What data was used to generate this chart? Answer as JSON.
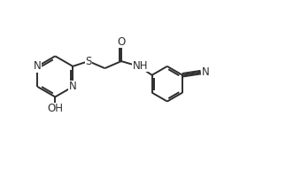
{
  "bg_color": "#ffffff",
  "line_color": "#2d2d2d",
  "line_width": 1.4,
  "font_size": 8.5,
  "xlim": [
    0,
    10
  ],
  "ylim": [
    0,
    6
  ]
}
